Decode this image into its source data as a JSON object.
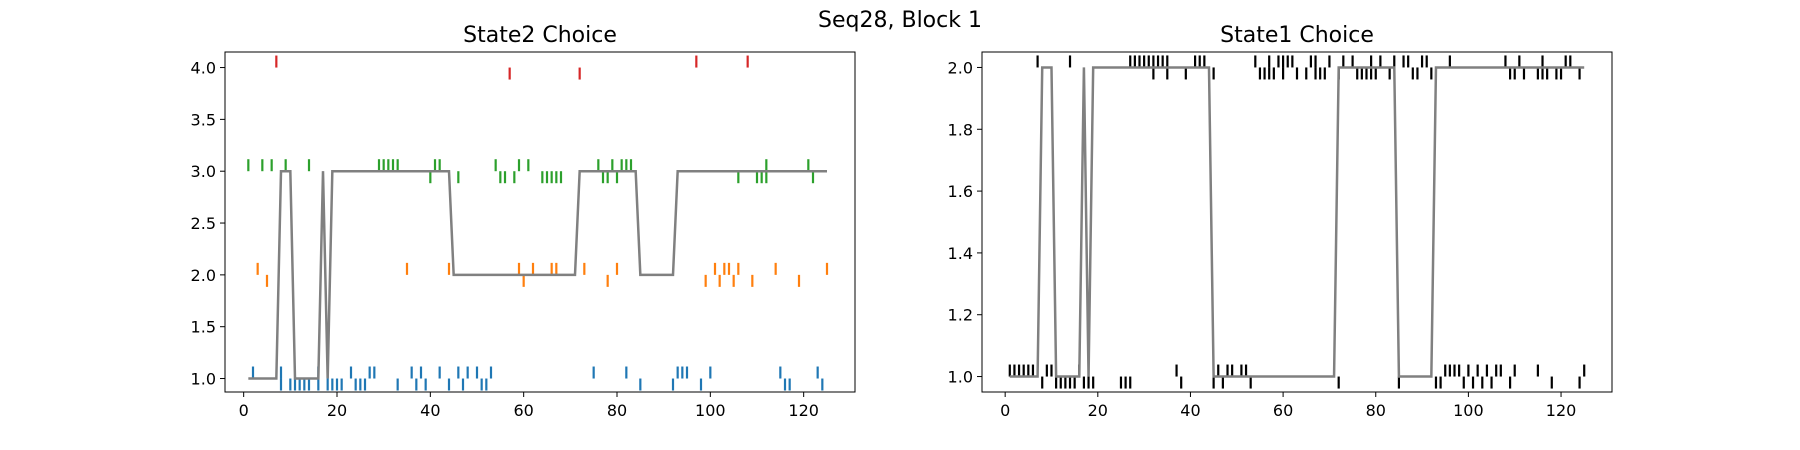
{
  "suptitle": "Seq28, Block 1",
  "chart_data": [
    {
      "type": "line",
      "title": "State2 Choice",
      "xlim": [
        -4,
        131
      ],
      "ylim": [
        0.87,
        4.15
      ],
      "xticks": [
        0,
        20,
        40,
        60,
        80,
        100,
        120
      ],
      "yticks": [
        1.0,
        1.5,
        2.0,
        2.5,
        3.0,
        3.5,
        4.0
      ],
      "ytick_labels": [
        "1.0",
        "1.5",
        "2.0",
        "2.5",
        "3.0",
        "3.5",
        "4.0"
      ],
      "line": {
        "color": "#808080",
        "x": [
          1,
          7,
          8,
          10,
          11,
          16,
          17,
          18,
          19,
          44,
          45,
          71,
          72,
          84,
          85,
          92,
          93,
          125
        ],
        "y": [
          1,
          1,
          3,
          3,
          1,
          1,
          3,
          1,
          3,
          3,
          2,
          2,
          3,
          3,
          2,
          2,
          3,
          3
        ]
      },
      "event_series": [
        {
          "color": "#1f77b4",
          "above": [
            2,
            8,
            16,
            18,
            23,
            27,
            28,
            36,
            38,
            42,
            46,
            48,
            50,
            53,
            75,
            82,
            93,
            94,
            95,
            100,
            115,
            123
          ],
          "below": [
            8,
            10,
            11,
            12,
            13,
            14,
            16,
            18,
            19,
            20,
            21,
            24,
            25,
            26,
            33,
            37,
            39,
            44,
            47,
            51,
            52,
            85,
            92,
            98,
            116,
            117,
            124
          ]
        },
        {
          "color": "#ff7f0e",
          "above": [
            3,
            35,
            44,
            59,
            62,
            66,
            67,
            73,
            80,
            101,
            103,
            104,
            106,
            114,
            125
          ],
          "below": [
            5,
            60,
            78,
            99,
            102,
            105,
            109,
            119
          ]
        },
        {
          "color": "#2ca02c",
          "above": [
            1,
            4,
            6,
            9,
            14,
            29,
            30,
            31,
            32,
            33,
            41,
            42,
            54,
            59,
            61,
            76,
            79,
            81,
            82,
            83,
            112,
            121
          ],
          "below": [
            40,
            46,
            55,
            56,
            58,
            64,
            65,
            66,
            67,
            68,
            77,
            78,
            80,
            106,
            110,
            111,
            112,
            122
          ]
        },
        {
          "color": "#d62728",
          "above": [
            7,
            97,
            108
          ],
          "below": [
            57,
            72
          ]
        }
      ]
    },
    {
      "type": "line",
      "title": "State1 Choice",
      "xlim": [
        -5,
        131
      ],
      "ylim": [
        0.95,
        2.05
      ],
      "xticks": [
        0,
        20,
        40,
        60,
        80,
        100,
        120
      ],
      "yticks": [
        1.0,
        1.2,
        1.4,
        1.6,
        1.8,
        2.0
      ],
      "ytick_labels": [
        "1.0",
        "1.2",
        "1.4",
        "1.6",
        "1.8",
        "2.0"
      ],
      "line": {
        "color": "#808080",
        "x": [
          1,
          7,
          8,
          10,
          11,
          16,
          17,
          18,
          19,
          44,
          45,
          71,
          72,
          84,
          85,
          92,
          93,
          125
        ],
        "y": [
          1,
          1,
          2,
          2,
          1,
          1,
          2,
          1,
          2,
          2,
          1,
          1,
          2,
          2,
          1,
          1,
          2,
          2
        ]
      },
      "event_series": [
        {
          "color": "#000000",
          "level1_above": [
            1,
            2,
            3,
            4,
            5,
            6,
            9,
            10,
            16,
            37,
            46,
            48,
            49,
            51,
            52,
            95,
            96,
            97,
            98,
            100,
            102,
            104,
            106,
            107,
            110,
            115,
            125
          ],
          "level1_below": [
            8,
            11,
            12,
            13,
            14,
            15,
            17,
            18,
            19,
            25,
            26,
            27,
            38,
            45,
            47,
            53,
            72,
            85,
            93,
            94,
            99,
            101,
            103,
            105,
            109,
            118,
            124
          ],
          "level2_above": [
            7,
            14,
            27,
            28,
            29,
            30,
            31,
            32,
            33,
            34,
            35,
            41,
            42,
            43,
            54,
            57,
            59,
            60,
            61,
            62,
            66,
            67,
            70,
            73,
            75,
            79,
            81,
            84,
            86,
            87,
            90,
            91,
            96,
            108,
            111,
            116,
            121,
            122
          ],
          "level2_below": [
            32,
            35,
            39,
            45,
            55,
            56,
            57,
            58,
            60,
            63,
            65,
            67,
            68,
            69,
            72,
            76,
            77,
            78,
            79,
            80,
            83,
            88,
            89,
            92,
            109,
            110,
            112,
            115,
            116,
            117,
            119,
            120,
            124
          ]
        }
      ]
    }
  ]
}
